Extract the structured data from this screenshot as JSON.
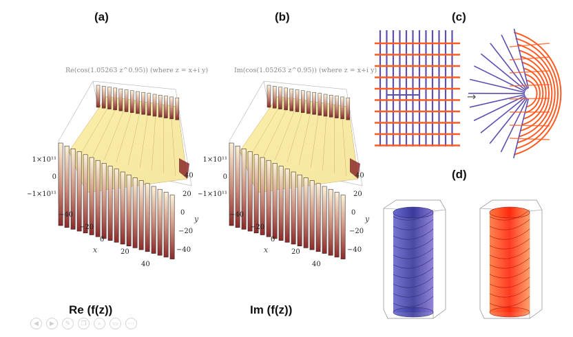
{
  "panels": {
    "a": {
      "label": "(a)",
      "title": "Re(cos(1.05263 z^0.95)) (where z = x+i y)",
      "caption": "Re (f(z))"
    },
    "b": {
      "label": "(b)",
      "title": "Im(cos(1.05263 z^0.95)) (where z = x+i y)",
      "caption": "Im (f(z))"
    },
    "c": {
      "label": "(c)",
      "arrow": "→"
    },
    "d": {
      "label": "(d)"
    }
  },
  "axes": {
    "z_ticks": [
      "1×10¹¹",
      "0",
      "−1×10¹¹"
    ],
    "x_ticks": [
      "−40",
      "−20",
      "0",
      "20",
      "40"
    ],
    "y_ticks": [
      "40",
      "20",
      "0",
      "−20",
      "−40"
    ],
    "x_label": "x",
    "y_label": "y"
  },
  "colors": {
    "grid_orange": "#ff5a1f",
    "grid_blue": "#5a4fb0",
    "surface_light": "#f5e6a0",
    "surface_dark": "#8b2a2a",
    "cyl_blue": "#3a3a9a",
    "cyl_red": "#ff2a10"
  },
  "toolbar": {
    "icons": [
      "prev-icon",
      "next-icon",
      "pen-icon",
      "copy-icon",
      "zoom-icon",
      "screen-icon",
      "more-icon"
    ]
  }
}
